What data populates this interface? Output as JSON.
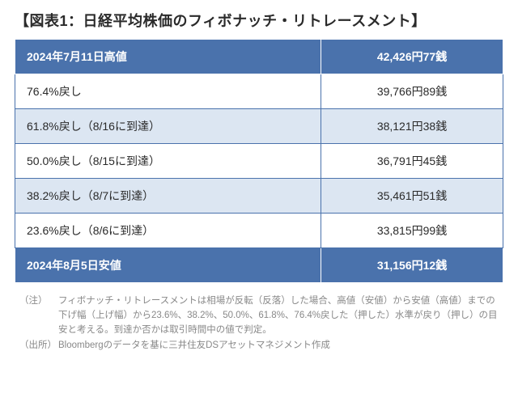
{
  "title": "【図表1：日経平均株価のフィボナッチ・リトレースメント】",
  "colors": {
    "header_bg": "#4a72ac",
    "header_border": "#ffffff",
    "body_border": "#4a72ac",
    "row_alt_bg": "#dce6f2",
    "row_bg": "#ffffff",
    "text": "#2a2a2a",
    "note_text": "#888888"
  },
  "table": {
    "top": {
      "label": "2024年7月11日高値",
      "value": "42,426円77銭"
    },
    "rows": [
      {
        "label": "76.4%戻し",
        "value": "39,766円89銭"
      },
      {
        "label": "61.8%戻し（8/16に到達）",
        "value": "38,121円38銭"
      },
      {
        "label": "50.0%戻し（8/15に到達）",
        "value": "36,791円45銭"
      },
      {
        "label": "38.2%戻し（8/7に到達）",
        "value": "35,461円51銭"
      },
      {
        "label": "23.6%戻し（8/6に到達）",
        "value": "33,815円99銭"
      }
    ],
    "bottom": {
      "label": "2024年8月5日安値",
      "value": "31,156円12銭"
    }
  },
  "notes": [
    {
      "label": "（注）",
      "text": "フィボナッチ・リトレースメントは相場が反転（反落）した場合、高値（安値）から安値（高値）までの下げ幅（上げ幅）から23.6%、38.2%、50.0%、61.8%、76.4%戻した（押した）水準が戻り（押し）の目安と考える。到達か否かは取引時間中の値で判定。"
    },
    {
      "label": "（出所）",
      "text": "Bloombergのデータを基に三井住友DSアセットマネジメント作成"
    }
  ]
}
